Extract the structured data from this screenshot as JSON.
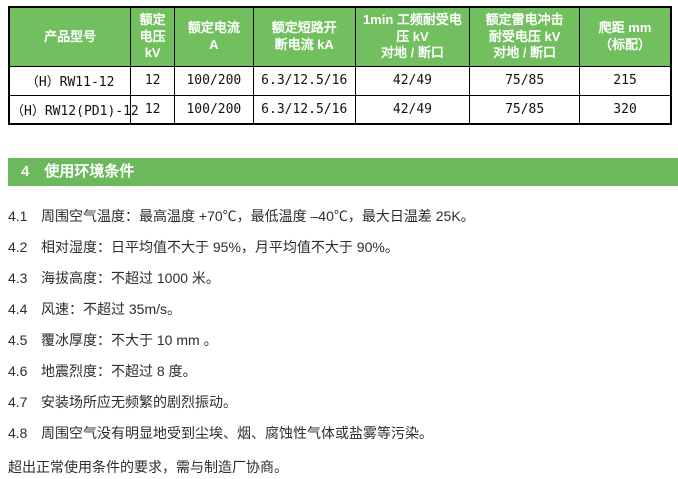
{
  "spec_table": {
    "headers": [
      "产品型号",
      "额定\n电压\nkV",
      "额定电流\nA",
      "额定短路开\n断电流 kA",
      "1min 工频耐受电\n压 kV\n对地 / 断口",
      "额定雷电冲击\n耐受电压 kV\n对地 / 断口",
      "爬距 mm\n（标配）"
    ],
    "rows": [
      [
        "（H）RW11-12",
        "12",
        "100/200",
        "6.3/12.5/16",
        "42/49",
        "75/85",
        "215"
      ],
      [
        "（H）RW12(PD1)-12",
        "12",
        "100/200",
        "6.3/12.5/16",
        "42/49",
        "75/85",
        "320"
      ]
    ]
  },
  "section_header": {
    "number": "4",
    "title": "使用环境条件"
  },
  "conditions": [
    {
      "num": "4.1",
      "text": "周围空气温度：最高温度 +70℃，最低温度 –40℃，最大日温差 25K。"
    },
    {
      "num": "4.2",
      "text": "相对湿度：日平均值不大于 95%，月平均值不大于 90%。"
    },
    {
      "num": "4.3",
      "text": "海拔高度：不超过 1000 米。"
    },
    {
      "num": "4.4",
      "text": "风速：不超过 35m/s。"
    },
    {
      "num": "4.5",
      "text": "覆冰厚度：不大于 10 mm 。"
    },
    {
      "num": "4.6",
      "text": "地震烈度：不超过 8 度。"
    },
    {
      "num": "4.7",
      "text": "安装场所应无频繁的剧烈振动。"
    },
    {
      "num": "4.8",
      "text": "周围空气没有明显地受到尘埃、烟、腐蚀性气体或盐雾等污染。"
    }
  ],
  "closing_note": "超出正常使用条件的要求，需与制造厂协商。",
  "colors": {
    "table_header_green": "#71bf5f",
    "section_bar_green": "#6cb85c",
    "table_border": "#000000",
    "header_text": "#ffffff",
    "body_text": "#2d2d2d"
  }
}
